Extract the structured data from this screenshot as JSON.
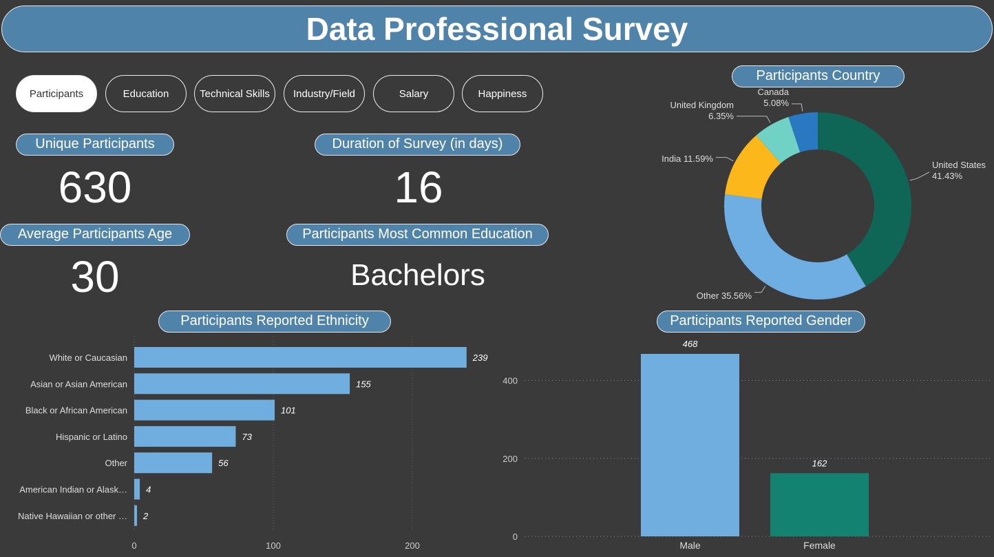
{
  "header": {
    "title": "Data Professional Survey"
  },
  "nav": {
    "tabs": [
      {
        "label": "Participants",
        "active": true
      },
      {
        "label": "Education",
        "active": false
      },
      {
        "label": "Technical Skills",
        "active": false
      },
      {
        "label": "Industry/Field",
        "active": false
      },
      {
        "label": "Salary",
        "active": false
      },
      {
        "label": "Happiness",
        "active": false
      }
    ]
  },
  "kpis": {
    "unique_participants": {
      "label": "Unique Participants",
      "value": "630"
    },
    "duration": {
      "label": "Duration of Survey (in days)",
      "value": "16"
    },
    "average_age": {
      "label": "Average Participants Age",
      "value": "30"
    },
    "common_education": {
      "label": "Participants Most Common Education",
      "value": "Bachelors"
    }
  },
  "colors": {
    "background": "#3a3a3a",
    "pill": "#5083a9",
    "bar_blue": "#70aee0",
    "bar_green": "#148271"
  },
  "chart_data": [
    {
      "type": "pie",
      "title": "Participants Country",
      "style": "donut",
      "slices": [
        {
          "label": "United States",
          "value": 41.43,
          "display": "41.43%",
          "color": "#0f6657"
        },
        {
          "label": "Other",
          "value": 35.56,
          "display": "35.56%",
          "color": "#6eaee2"
        },
        {
          "label": "India",
          "value": 11.59,
          "display": "11.59%",
          "color": "#fcb71a"
        },
        {
          "label": "United Kingdom",
          "value": 6.35,
          "display": "6.35%",
          "color": "#6fd2c4"
        },
        {
          "label": "Canada",
          "value": 5.08,
          "display": "5.08%",
          "color": "#2b78c2"
        }
      ]
    },
    {
      "type": "bar",
      "orientation": "horizontal",
      "title": "Participants Reported Ethnicity",
      "categories": [
        "White or Caucasian",
        "Asian or Asian American",
        "Black or African American",
        "Hispanic or Latino",
        "Other",
        "American Indian or Alask…",
        "Native Hawaiian or other …"
      ],
      "values": [
        239,
        155,
        101,
        73,
        56,
        4,
        2
      ],
      "xlim": [
        0,
        250
      ],
      "xticks": [
        0,
        100,
        200
      ],
      "color": "#70aee0"
    },
    {
      "type": "bar",
      "orientation": "vertical",
      "title": "Participants Reported Gender",
      "categories": [
        "Male",
        "Female"
      ],
      "values": [
        468,
        162
      ],
      "ylim": [
        0,
        468
      ],
      "yticks": [
        0,
        200,
        400
      ],
      "colors": [
        "#70aee0",
        "#148271"
      ],
      "grid": true
    }
  ]
}
